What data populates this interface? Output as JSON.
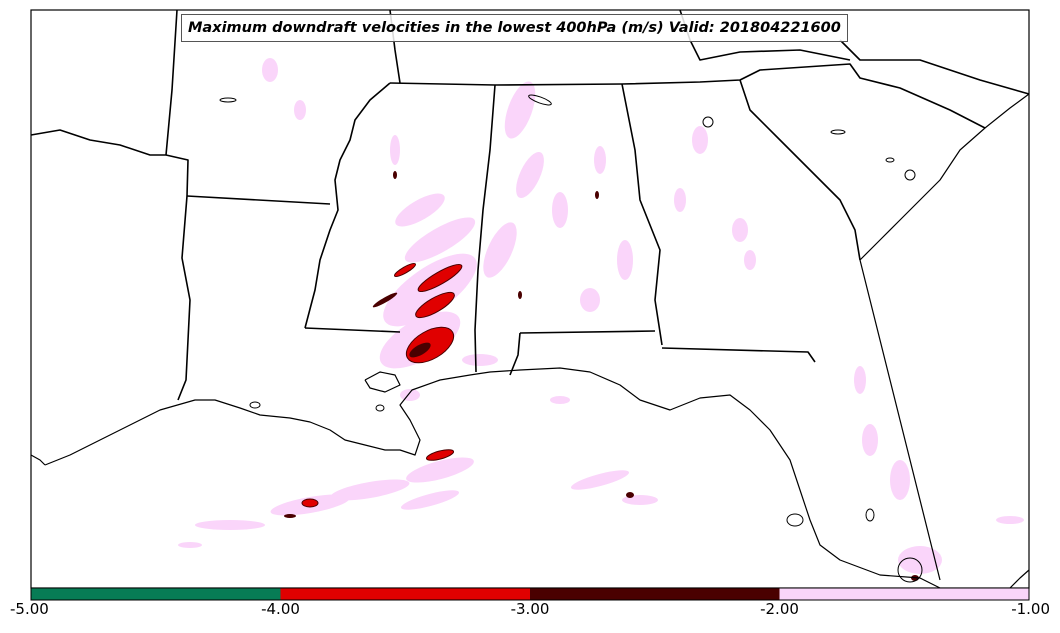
{
  "map": {
    "title": "Maximum downdraft velocities in the lowest 400hPa (m/s) Valid: 201804221600"
  },
  "legend": {
    "colorbar": {
      "min": -5.0,
      "max": -1.0,
      "ticks": [
        "-5.00",
        "-4.00",
        "-3.00",
        "-2.00",
        "-1.00"
      ],
      "bins": [
        {
          "from": -5.0,
          "to": -4.0,
          "color": "#077c55"
        },
        {
          "from": -4.0,
          "to": -3.0,
          "color": "#e00000"
        },
        {
          "from": -3.0,
          "to": -2.0,
          "color": "#4a0000"
        },
        {
          "from": -2.0,
          "to": -1.0,
          "color": "#fad5fa"
        }
      ]
    }
  },
  "colors": {
    "land_background": "#ffffff",
    "boundary_lines": "#000000"
  }
}
